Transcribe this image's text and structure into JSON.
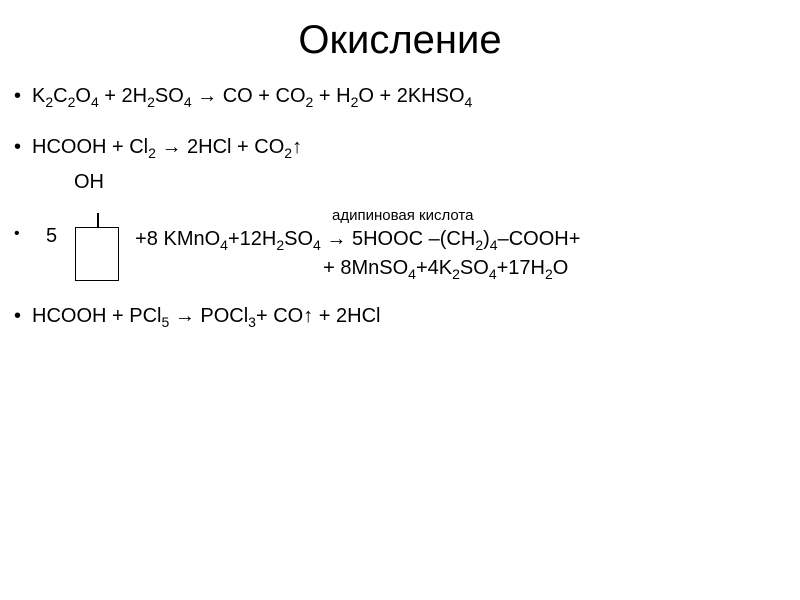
{
  "title": "Окисление",
  "eq1": {
    "lhs_a": "K",
    "lhs_a_s": "2",
    "lhs_b": "C",
    "lhs_b_s": "2",
    "lhs_c": "O",
    "lhs_c_s": "4",
    "plus1": " + 2H",
    "lhs_d_s": "2",
    "lhs_e": "SO",
    "lhs_e_s": "4",
    "arrow": " → CO + CO",
    "co2_s": "2",
    "plus2": " + H",
    "h2o_s": "2",
    "o": "O + 2KHSO",
    "khso_s": "4"
  },
  "eq2": {
    "a": "HCOOH + Cl",
    "cl_s": "2",
    "arr": " → 2HCl + CO",
    "co_s": "2",
    "up": "↑"
  },
  "cyclo": {
    "oh": "OH",
    "adipic": "адипиновая кислота",
    "coef": "5",
    "r1_a": "+8 KMnO",
    "r1_a_s": "4",
    "r1_b": "+12H",
    "r1_b_s": "2",
    "r1_c": "SO",
    "r1_c_s": "4",
    "r1_arr": " → 5HOOC –(CH",
    "r1_d_s": "2",
    "r1_e": ")",
    "r1_e_s": "4",
    "r1_f": "–COOH+",
    "r2_a": "+ 8MnSO",
    "r2_a_s": "4",
    "r2_b": "+4K",
    "r2_b_s": "2",
    "r2_c": "SO",
    "r2_c_s": "4",
    "r2_d": "+17H",
    "r2_d_s": "2",
    "r2_e": "O"
  },
  "eq4": {
    "a": "HCOOH + PCl",
    "a_s": "5",
    "arr": " → POCl",
    "b_s": "3",
    "c": "+ CO↑ + 2HCl"
  },
  "bullet": "•"
}
